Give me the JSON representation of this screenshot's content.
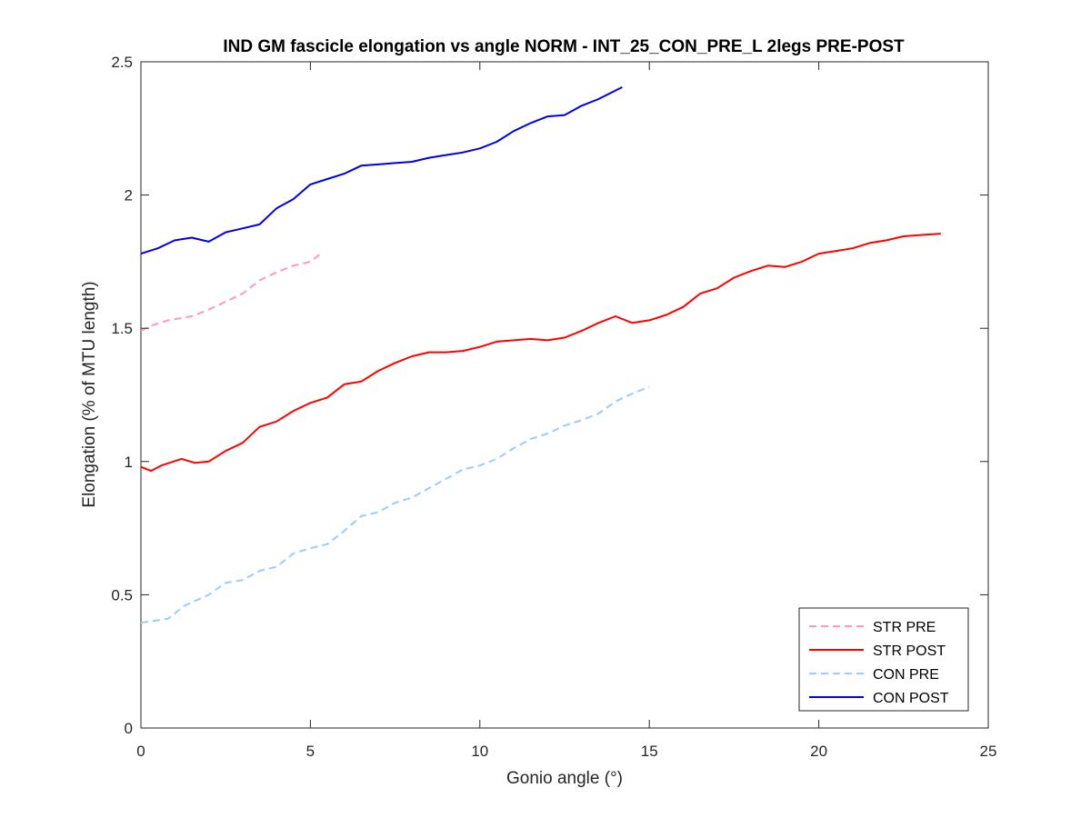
{
  "chart_data": {
    "type": "line",
    "title": "IND GM fascicle elongation vs angle NORM - INT_25_CON_PRE_L 2legs PRE-POST",
    "xlabel": "Gonio angle (°)",
    "ylabel": "Elongation (% of MTU length)",
    "xlim": [
      0,
      25
    ],
    "ylim": [
      0,
      2.5
    ],
    "xticks": [
      "0",
      "5",
      "10",
      "15",
      "20",
      "25"
    ],
    "yticks": [
      "0",
      "0.5",
      "1",
      "1.5",
      "2",
      "2.5"
    ],
    "grid": false,
    "legend_position": "bottom-right",
    "series": [
      {
        "name": "STR PRE",
        "color": "#ff99bb",
        "dash": "dashed",
        "points": [
          [
            0,
            1.49
          ],
          [
            0.3,
            1.51
          ],
          [
            0.8,
            1.53
          ],
          [
            1.5,
            1.545
          ],
          [
            2.0,
            1.57
          ],
          [
            2.5,
            1.6
          ],
          [
            3.0,
            1.63
          ],
          [
            3.5,
            1.68
          ],
          [
            4.0,
            1.71
          ],
          [
            4.5,
            1.735
          ],
          [
            5.0,
            1.75
          ],
          [
            5.3,
            1.78
          ]
        ]
      },
      {
        "name": "STR POST",
        "color": "#ff0000",
        "dash": "solid",
        "points": [
          [
            0,
            0.98
          ],
          [
            0.3,
            0.965
          ],
          [
            0.6,
            0.985
          ],
          [
            1.2,
            1.01
          ],
          [
            1.6,
            0.995
          ],
          [
            2.0,
            1.0
          ],
          [
            2.5,
            1.04
          ],
          [
            3.0,
            1.07
          ],
          [
            3.5,
            1.13
          ],
          [
            4.0,
            1.15
          ],
          [
            4.5,
            1.19
          ],
          [
            5.0,
            1.22
          ],
          [
            5.5,
            1.24
          ],
          [
            6.0,
            1.29
          ],
          [
            6.5,
            1.3
          ],
          [
            7.0,
            1.34
          ],
          [
            7.5,
            1.37
          ],
          [
            8.0,
            1.395
          ],
          [
            8.5,
            1.41
          ],
          [
            9.0,
            1.41
          ],
          [
            9.5,
            1.415
          ],
          [
            10.0,
            1.43
          ],
          [
            10.5,
            1.45
          ],
          [
            11.0,
            1.455
          ],
          [
            11.5,
            1.46
          ],
          [
            12.0,
            1.455
          ],
          [
            12.5,
            1.465
          ],
          [
            13.0,
            1.49
          ],
          [
            13.5,
            1.52
          ],
          [
            14.0,
            1.545
          ],
          [
            14.5,
            1.52
          ],
          [
            15.0,
            1.53
          ],
          [
            15.5,
            1.55
          ],
          [
            16.0,
            1.58
          ],
          [
            16.5,
            1.63
          ],
          [
            17.0,
            1.65
          ],
          [
            17.5,
            1.69
          ],
          [
            18.0,
            1.715
          ],
          [
            18.5,
            1.735
          ],
          [
            19.0,
            1.73
          ],
          [
            19.5,
            1.75
          ],
          [
            20.0,
            1.78
          ],
          [
            20.5,
            1.79
          ],
          [
            21.0,
            1.8
          ],
          [
            21.5,
            1.82
          ],
          [
            22.0,
            1.83
          ],
          [
            22.5,
            1.845
          ],
          [
            23.0,
            1.85
          ],
          [
            23.6,
            1.855
          ]
        ]
      },
      {
        "name": "CON PRE",
        "color": "#99ccff",
        "dash": "dashed",
        "points": [
          [
            0,
            0.395
          ],
          [
            0.8,
            0.41
          ],
          [
            1.3,
            0.46
          ],
          [
            2.0,
            0.5
          ],
          [
            2.5,
            0.545
          ],
          [
            3.0,
            0.555
          ],
          [
            3.5,
            0.59
          ],
          [
            4.0,
            0.605
          ],
          [
            4.5,
            0.655
          ],
          [
            5.0,
            0.675
          ],
          [
            5.5,
            0.69
          ],
          [
            6.0,
            0.74
          ],
          [
            6.5,
            0.795
          ],
          [
            7.0,
            0.81
          ],
          [
            7.5,
            0.845
          ],
          [
            8.0,
            0.865
          ],
          [
            8.5,
            0.9
          ],
          [
            9.0,
            0.935
          ],
          [
            9.5,
            0.97
          ],
          [
            10.0,
            0.985
          ],
          [
            10.5,
            1.01
          ],
          [
            11.0,
            1.05
          ],
          [
            11.5,
            1.085
          ],
          [
            12.0,
            1.105
          ],
          [
            12.5,
            1.135
          ],
          [
            13.0,
            1.155
          ],
          [
            13.5,
            1.18
          ],
          [
            14.0,
            1.225
          ],
          [
            14.5,
            1.255
          ],
          [
            15.0,
            1.28
          ]
        ]
      },
      {
        "name": "CON POST",
        "color": "#0000e6",
        "dash": "solid",
        "points": [
          [
            0,
            1.78
          ],
          [
            0.5,
            1.8
          ],
          [
            1.0,
            1.83
          ],
          [
            1.5,
            1.84
          ],
          [
            2.0,
            1.825
          ],
          [
            2.5,
            1.86
          ],
          [
            3.0,
            1.875
          ],
          [
            3.5,
            1.89
          ],
          [
            4.0,
            1.95
          ],
          [
            4.5,
            1.985
          ],
          [
            5.0,
            2.04
          ],
          [
            5.5,
            2.06
          ],
          [
            6.0,
            2.08
          ],
          [
            6.5,
            2.11
          ],
          [
            7.0,
            2.115
          ],
          [
            7.5,
            2.12
          ],
          [
            8.0,
            2.125
          ],
          [
            8.5,
            2.14
          ],
          [
            9.0,
            2.15
          ],
          [
            9.5,
            2.16
          ],
          [
            10.0,
            2.175
          ],
          [
            10.5,
            2.2
          ],
          [
            11.0,
            2.24
          ],
          [
            11.5,
            2.27
          ],
          [
            12.0,
            2.295
          ],
          [
            12.5,
            2.3
          ],
          [
            13.0,
            2.335
          ],
          [
            13.5,
            2.36
          ],
          [
            14.2,
            2.405
          ]
        ]
      }
    ]
  }
}
